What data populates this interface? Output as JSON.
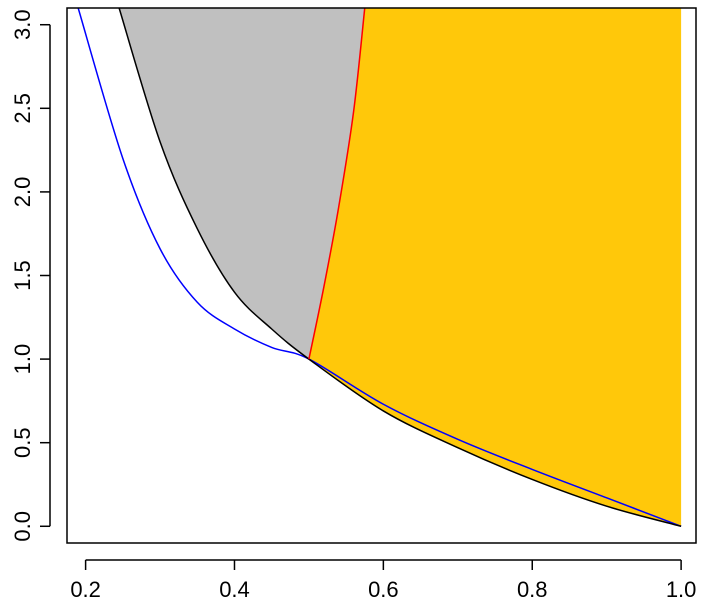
{
  "chart_data": {
    "type": "area",
    "title": "",
    "xlabel": "",
    "ylabel": "",
    "xlim": [
      0.175,
      1.02
    ],
    "ylim": [
      -0.1,
      3.1
    ],
    "grid": false,
    "legend": "none",
    "x_ticks": [
      "0.2",
      "0.4",
      "0.6",
      "0.8",
      "1.0"
    ],
    "y_ticks": [
      "0.0",
      "0.5",
      "1.0",
      "1.5",
      "2.0",
      "2.5",
      "3.0"
    ],
    "series": [
      {
        "color": "#0000ff",
        "points": [
          [
            0.19,
            3.1
          ],
          [
            0.25,
            2.2
          ],
          [
            0.3,
            1.66
          ],
          [
            0.35,
            1.34
          ],
          [
            0.4,
            1.18
          ],
          [
            0.45,
            1.07
          ],
          [
            0.5,
            1.0
          ],
          [
            0.6,
            0.73
          ],
          [
            0.7,
            0.52
          ],
          [
            0.8,
            0.34
          ],
          [
            0.9,
            0.17
          ],
          [
            1.0,
            0.0
          ]
        ]
      },
      {
        "color": "#000000",
        "points": [
          [
            0.245,
            3.1
          ],
          [
            0.3,
            2.3
          ],
          [
            0.35,
            1.78
          ],
          [
            0.4,
            1.4
          ],
          [
            0.45,
            1.18
          ],
          [
            0.5,
            1.0
          ],
          [
            0.6,
            0.69
          ],
          [
            0.7,
            0.47
          ],
          [
            0.8,
            0.28
          ],
          [
            0.9,
            0.12
          ],
          [
            1.0,
            0.0
          ]
        ]
      },
      {
        "color": "#ff0000",
        "points": [
          [
            0.5,
            1.0
          ],
          [
            0.52,
            1.43
          ],
          [
            0.54,
            1.91
          ],
          [
            0.56,
            2.48
          ],
          [
            0.575,
            3.1
          ]
        ]
      }
    ],
    "regions": [
      {
        "color": "#c0c0c0",
        "bounds": "between black curve and red curve, x from 0.245 to 0.575"
      },
      {
        "color": "#ffc80a",
        "bounds": "right of red curve, above black curve, up to x = 1.0"
      }
    ]
  }
}
